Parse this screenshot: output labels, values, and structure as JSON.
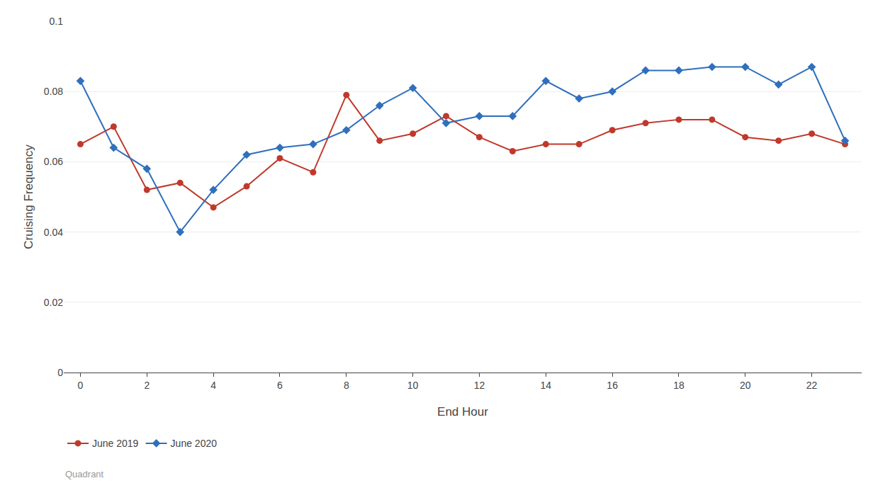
{
  "chart_data": {
    "type": "line",
    "subtitle": "Quadrant",
    "xlabel": "End Hour",
    "ylabel": "Cruising Frequency",
    "x": [
      0,
      1,
      2,
      3,
      4,
      5,
      6,
      7,
      8,
      9,
      10,
      11,
      12,
      13,
      14,
      15,
      16,
      17,
      18,
      19,
      20,
      21,
      22,
      23
    ],
    "series": [
      {
        "name": "June 2019",
        "color": "#c0392b",
        "marker": "circle",
        "values": [
          0.065,
          0.07,
          0.052,
          0.054,
          0.047,
          0.053,
          0.061,
          0.057,
          0.079,
          0.066,
          0.068,
          0.073,
          0.067,
          0.063,
          0.065,
          0.065,
          0.069,
          0.071,
          0.072,
          0.072,
          0.067,
          0.066,
          0.068,
          0.065
        ]
      },
      {
        "name": "June 2020",
        "color": "#2f6fbd",
        "marker": "diamond",
        "values": [
          0.083,
          0.064,
          0.058,
          0.04,
          0.052,
          0.062,
          0.064,
          0.065,
          0.069,
          0.076,
          0.081,
          0.071,
          0.073,
          0.073,
          0.083,
          0.078,
          0.08,
          0.086,
          0.086,
          0.087,
          0.087,
          0.082,
          0.087,
          0.066
        ]
      }
    ],
    "xlim": [
      -0.5,
      23.5
    ],
    "xticks": [
      0,
      2,
      4,
      6,
      8,
      10,
      12,
      14,
      16,
      18,
      20,
      22
    ],
    "ylim": [
      0,
      0.1
    ],
    "yticks": [
      0,
      0.02,
      0.04,
      0.06,
      0.08,
      0.1
    ],
    "grid": true,
    "legend": "bottom"
  }
}
